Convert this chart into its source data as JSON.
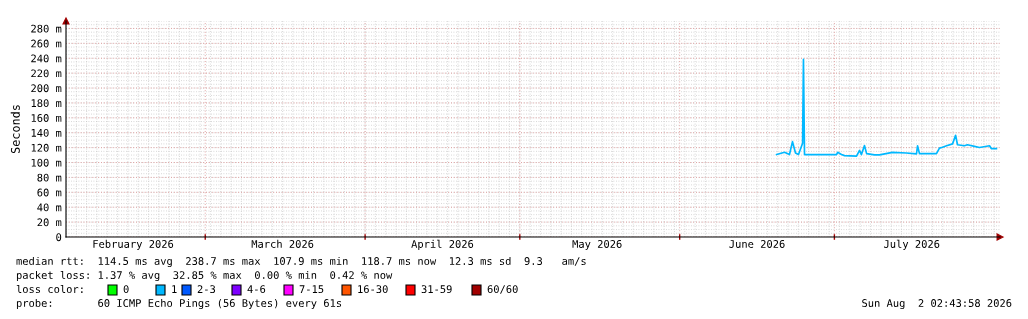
{
  "chart_data": {
    "type": "line",
    "ylabel": "Seconds",
    "x": [
      "2026-06-19T19:00",
      "2026-06-21T08:00",
      "2026-06-22T07:00",
      "2026-06-22T21:00",
      "2026-06-23T11:00",
      "2026-06-24T01:00",
      "2026-06-24T20:00",
      "2026-06-25T00:00",
      "2026-06-25T05:00",
      "2026-07-01T10:00",
      "2026-07-01T15:00",
      "2026-07-02T09:00",
      "2026-07-02T23:00",
      "2026-07-05T07:00",
      "2026-07-05T21:00",
      "2026-07-06T06:00",
      "2026-07-06T20:00",
      "2026-07-07T06:00",
      "2026-07-08T19:00",
      "2026-07-09T18:00",
      "2026-07-12T06:00",
      "2026-07-14T23:00",
      "2026-07-16T22:00",
      "2026-07-17T03:00",
      "2026-07-17T12:00",
      "2026-07-20T19:00",
      "2026-07-21T09:00",
      "2026-07-21T23:00",
      "2026-07-22T18:00",
      "2026-07-23T22:00",
      "2026-07-24T12:00",
      "2026-07-24T21:00",
      "2026-07-26T05:00",
      "2026-07-26T19:00",
      "2026-07-28T04:00",
      "2026-07-29T03:00",
      "2026-07-31T02:00",
      "2026-07-31T11:00",
      "2026-08-01T10:00"
    ],
    "series": [
      {
        "color": "#00b8ff",
        "values": [
          110.7,
          113.7,
          110.7,
          128,
          112.8,
          110.7,
          125.8,
          238.7,
          110.7,
          110.5,
          113.7,
          110.7,
          109.3,
          108.6,
          116.3,
          110.7,
          122.8,
          111.9,
          110.2,
          110.2,
          113.7,
          112.8,
          111.5,
          122.5,
          111.9,
          111.9,
          119.3,
          120.6,
          122.5,
          125,
          136.6,
          123.8,
          122.5,
          123.8,
          121.6,
          120.2,
          122.5,
          118.6,
          118.7
        ]
      }
    ],
    "xlim": [
      "2026-02-02",
      "2026-08-02T02:43"
    ],
    "xticks": [
      {
        "value": "2026-02-15",
        "label": "February 2026"
      },
      {
        "value": "2026-03-01",
        "label": null
      },
      {
        "value": "2026-03-16",
        "label": "March 2026"
      },
      {
        "value": "2026-04-01",
        "label": null
      },
      {
        "value": "2026-04-16",
        "label": "April 2026"
      },
      {
        "value": "2026-05-01",
        "label": null
      },
      {
        "value": "2026-05-16",
        "label": "May 2026"
      },
      {
        "value": "2026-06-01",
        "label": null
      },
      {
        "value": "2026-06-16",
        "label": "June 2026"
      },
      {
        "value": "2026-07-01",
        "label": null
      },
      {
        "value": "2026-07-16",
        "label": "July 2026"
      }
    ],
    "ylim": [
      0,
      290
    ],
    "yticks": [
      0,
      {
        "value": 20,
        "label": "20 m"
      },
      {
        "value": 40,
        "label": "40 m"
      },
      {
        "value": 60,
        "label": "60 m"
      },
      {
        "value": 80,
        "label": "80 m"
      },
      {
        "value": 100,
        "label": "100 m"
      },
      {
        "value": 120,
        "label": "120 m"
      },
      {
        "value": 140,
        "label": "140 m"
      },
      {
        "value": 160,
        "label": "160 m"
      },
      {
        "value": 180,
        "label": "180 m"
      },
      {
        "value": 200,
        "label": "200 m"
      },
      {
        "value": 220,
        "label": "220 m"
      },
      {
        "value": 240,
        "label": "240 m"
      },
      {
        "value": 260,
        "label": "260 m"
      },
      {
        "value": 280,
        "label": "280 m"
      }
    ],
    "grid": true,
    "legend": false,
    "marker": "none",
    "line_style": "solid",
    "annotations": [
      "median rtt:  114.5 ms avg  238.7 ms max  107.9 ms min  118.7 ms now  12.3 ms sd  9.3   am/s",
      "packet loss: 1.37 % avg  32.85 % max  0.00 % min  0.42 % now",
      "loss color:",
      "0",
      "1",
      "2-3",
      "4-6",
      "7-15",
      "16-30",
      "31-59",
      "60/60",
      "probe:       60 ICMP Echo Pings (56 Bytes) every 61s",
      "Sun Aug  2 02:43:58 2026"
    ]
  }
}
